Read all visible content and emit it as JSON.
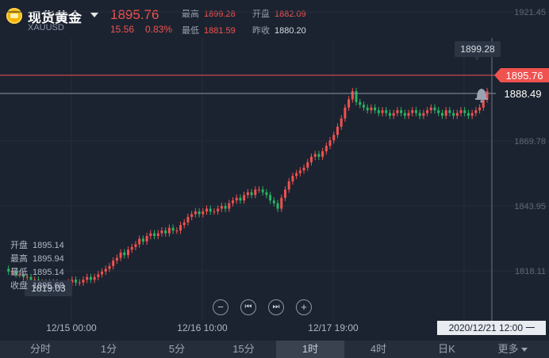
{
  "header": {
    "title": "现货黄金",
    "symbol": "XAUUSD",
    "price": "1895.76",
    "change": "15.56",
    "change_pct": "0.83%",
    "high_label": "最高",
    "high": "1899.28",
    "low_label": "最低",
    "low": "1881.59",
    "open_label": "开盘",
    "open": "1882.09",
    "prev_close_label": "昨收",
    "prev_close": "1880.20"
  },
  "axis": {
    "price_ticks": [
      "1921.45",
      "1869.78",
      "1843.95",
      "1818.11"
    ],
    "time_ticks": [
      "12/15 00:00",
      "12/16 10:00",
      "12/17 19:00"
    ],
    "cursor_time": "2020/12/21 12:00 一"
  },
  "markers": {
    "current_price": "1895.76",
    "alert_price": "1888.49",
    "max_price": "1899.28",
    "min_price": "1819.03"
  },
  "ohlc_panel": {
    "open_label": "开盘",
    "open": "1895.14",
    "high_label": "最高",
    "high": "1895.94",
    "low_label": "最低",
    "low": "1895.14",
    "close_label": "收盘",
    "close": "1895.69"
  },
  "nav_buttons": {
    "zoom_out": "−",
    "prev": "⏮",
    "next": "⏭",
    "zoom_in": "+"
  },
  "periods": [
    "分时",
    "1分",
    "5分",
    "15分",
    "1时",
    "4时",
    "日K",
    "更多"
  ],
  "selected_period": "1时",
  "colors": {
    "up": "#f0524f",
    "down": "#28b463",
    "background": "#1c2330"
  },
  "chart_data": {
    "type": "candlestick",
    "symbol": "XAUUSD",
    "ylim": [
      1812,
      1925
    ],
    "x_labels": [
      "12/15 00:00",
      "12/16 10:00",
      "12/17 19:00"
    ],
    "close_series": [
      1831,
      1830,
      1830,
      1829,
      1829,
      1828,
      1828,
      1827,
      1827,
      1826,
      1826,
      1825,
      1826,
      1826,
      1825,
      1824,
      1825,
      1826,
      1827,
      1826,
      1826,
      1827,
      1828,
      1827,
      1828,
      1829,
      1830,
      1831,
      1832,
      1834,
      1835,
      1837,
      1836,
      1838,
      1839,
      1840,
      1842,
      1841,
      1843,
      1844,
      1843,
      1844,
      1845,
      1844,
      1846,
      1845,
      1845,
      1847,
      1848,
      1850,
      1851,
      1852,
      1851,
      1852,
      1853,
      1852,
      1852,
      1853,
      1854,
      1853,
      1855,
      1856,
      1857,
      1856,
      1858,
      1859,
      1858,
      1860,
      1860,
      1859,
      1858,
      1856,
      1855,
      1853,
      1857,
      1860,
      1863,
      1865,
      1866,
      1867,
      1868,
      1870,
      1872,
      1873,
      1872,
      1874,
      1876,
      1878,
      1880,
      1883,
      1886,
      1890,
      1893,
      1896,
      1892,
      1891,
      1890,
      1889,
      1890,
      1889,
      1888,
      1889,
      1888,
      1887,
      1888,
      1889,
      1888,
      1887,
      1888,
      1889,
      1888,
      1887,
      1888,
      1889,
      1890,
      1889,
      1888,
      1887,
      1889,
      1888,
      1887,
      1888,
      1889,
      1888,
      1887,
      1888,
      1889,
      1890,
      1893,
      1896
    ]
  }
}
